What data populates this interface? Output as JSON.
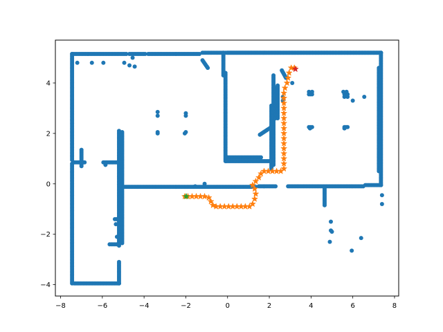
{
  "chart_data": {
    "type": "scatter",
    "title": "",
    "xlabel": "",
    "ylabel": "",
    "xlim": [
      -8.25,
      8.2
    ],
    "ylim": [
      -4.45,
      5.7
    ],
    "xticks": [
      -8,
      -6,
      -4,
      -2,
      0,
      2,
      4,
      6,
      8
    ],
    "yticks": [
      -4,
      -2,
      0,
      2,
      4
    ],
    "xtick_labels": [
      "−8",
      "−6",
      "−4",
      "−2",
      "0",
      "2",
      "4",
      "6",
      "8"
    ],
    "ytick_labels": [
      "−4",
      "−2",
      "0",
      "2",
      "4"
    ],
    "grid": false,
    "legend": "none",
    "series": [
      {
        "marker": "circle",
        "color": "#1f77b4",
        "segments": [
          [
            [
              -7.45,
              5.15
            ],
            [
              -4.85,
              5.15
            ]
          ],
          [
            [
              -4.7,
              5.15
            ],
            [
              -3.95,
              5.15
            ]
          ],
          [
            [
              -3.8,
              5.15
            ],
            [
              -1.35,
              5.15
            ]
          ],
          [
            [
              -1.2,
              5.2
            ],
            [
              7.35,
              5.2
            ]
          ],
          [
            [
              -7.45,
              5.15
            ],
            [
              -7.45,
              0.95
            ]
          ],
          [
            [
              -7.45,
              0.8
            ],
            [
              -7.45,
              -3.95
            ]
          ],
          [
            [
              -7.35,
              -3.95
            ],
            [
              -5.2,
              -3.95
            ]
          ],
          [
            [
              -5.2,
              -3.95
            ],
            [
              -5.2,
              -3.1
            ]
          ],
          [
            [
              -5.2,
              -2.45
            ],
            [
              -5.2,
              2.1
            ]
          ],
          [
            [
              -5.05,
              2.05
            ],
            [
              -5.05,
              -2.35
            ]
          ],
          [
            [
              -7.35,
              0.85
            ],
            [
              -6.85,
              0.85
            ]
          ],
          [
            [
              -7.0,
              1.35
            ],
            [
              -7.0,
              0.7
            ]
          ],
          [
            [
              -5.95,
              0.85
            ],
            [
              -5.3,
              0.85
            ]
          ],
          [
            [
              -5.4,
              -1.4
            ],
            [
              -5.25,
              -1.4
            ]
          ],
          [
            [
              -5.65,
              -2.4
            ],
            [
              -5.25,
              -2.4
            ]
          ],
          [
            [
              -5.05,
              -0.12
            ],
            [
              1.35,
              -0.12
            ]
          ],
          [
            [
              1.5,
              -0.1
            ],
            [
              2.3,
              -0.1
            ]
          ],
          [
            [
              2.9,
              -0.1
            ],
            [
              6.5,
              -0.1
            ]
          ],
          [
            [
              -0.2,
              5.2
            ],
            [
              -0.2,
              4.3
            ]
          ],
          [
            [
              -0.1,
              4.4
            ],
            [
              -0.1,
              0.9
            ]
          ],
          [
            [
              -0.05,
              1.05
            ],
            [
              1.6,
              1.05
            ]
          ],
          [
            [
              -0.05,
              0.9
            ],
            [
              2.2,
              0.9
            ]
          ],
          [
            [
              2.1,
              3.1
            ],
            [
              2.1,
              0.6
            ]
          ],
          [
            [
              2.2,
              4.3
            ],
            [
              2.2,
              0.75
            ]
          ],
          [
            [
              2.3,
              3.8
            ],
            [
              2.3,
              2.6
            ]
          ],
          [
            [
              2.4,
              3.9
            ],
            [
              2.4,
              2.6
            ]
          ],
          [
            [
              1.55,
              1.95
            ],
            [
              2.1,
              2.25
            ]
          ],
          [
            [
              2.6,
              4.5
            ],
            [
              2.8,
              4.2
            ]
          ],
          [
            [
              0.0,
              5.2
            ],
            [
              7.35,
              5.2
            ]
          ],
          [
            [
              7.35,
              5.2
            ],
            [
              7.35,
              -0.05
            ]
          ],
          [
            [
              7.25,
              4.6
            ],
            [
              7.25,
              0.5
            ]
          ],
          [
            [
              6.6,
              -0.05
            ],
            [
              7.35,
              -0.05
            ]
          ],
          [
            [
              5.6,
              3.55
            ],
            [
              5.75,
              3.55
            ]
          ],
          [
            [
              3.9,
              3.55
            ],
            [
              4.05,
              3.55
            ]
          ],
          [
            [
              3.9,
              2.25
            ],
            [
              4.05,
              2.25
            ]
          ],
          [
            [
              5.6,
              2.25
            ],
            [
              5.75,
              2.25
            ]
          ],
          [
            [
              -1.2,
              4.9
            ],
            [
              -0.95,
              4.6
            ]
          ],
          [
            [
              4.65,
              -0.15
            ],
            [
              4.65,
              -0.85
            ]
          ]
        ],
        "points": [
          [
            -7.2,
            4.8
          ],
          [
            -6.5,
            4.8
          ],
          [
            -5.95,
            4.8
          ],
          [
            -4.95,
            4.8
          ],
          [
            -4.7,
            4.7
          ],
          [
            -4.45,
            4.65
          ],
          [
            -4.55,
            5.0
          ],
          [
            -3.35,
            2.85
          ],
          [
            -3.35,
            2.7
          ],
          [
            -3.35,
            2.05
          ],
          [
            -3.35,
            2.0
          ],
          [
            -2.0,
            2.8
          ],
          [
            -2.0,
            2.7
          ],
          [
            -2.0,
            2.05
          ],
          [
            -2.05,
            2.0
          ],
          [
            3.9,
            3.65
          ],
          [
            4.05,
            3.65
          ],
          [
            5.55,
            3.65
          ],
          [
            5.7,
            3.65
          ],
          [
            3.95,
            2.2
          ],
          [
            5.6,
            2.2
          ],
          [
            4.95,
            -1.5
          ],
          [
            4.95,
            -1.85
          ],
          [
            5.0,
            -1.9
          ],
          [
            5.95,
            -2.65
          ],
          [
            6.4,
            -2.15
          ],
          [
            4.9,
            -2.3
          ],
          [
            7.4,
            -0.45
          ],
          [
            7.4,
            -0.8
          ],
          [
            -1.55,
            -0.1
          ],
          [
            -1.1,
            0.0
          ],
          [
            6.0,
            3.3
          ],
          [
            6.55,
            3.45
          ],
          [
            2.65,
            3.3
          ],
          [
            2.65,
            3.45
          ],
          [
            3.1,
            4.0
          ],
          [
            -5.85,
            0.75
          ],
          [
            -5.35,
            -1.6
          ],
          [
            -5.3,
            -2.1
          ],
          [
            5.6,
            3.45
          ],
          [
            5.75,
            3.45
          ]
        ]
      },
      {
        "marker": "star",
        "color": "#ff7f0e",
        "path": [
          [
            -2.05,
            -0.5
          ],
          [
            -1.9,
            -0.5
          ],
          [
            -1.7,
            -0.5
          ],
          [
            -1.5,
            -0.5
          ],
          [
            -1.3,
            -0.5
          ],
          [
            -1.1,
            -0.5
          ],
          [
            -0.9,
            -0.55
          ],
          [
            -0.8,
            -0.7
          ],
          [
            -0.7,
            -0.85
          ],
          [
            -0.55,
            -0.9
          ],
          [
            -0.35,
            -0.9
          ],
          [
            -0.15,
            -0.9
          ],
          [
            0.05,
            -0.9
          ],
          [
            0.25,
            -0.9
          ],
          [
            0.45,
            -0.9
          ],
          [
            0.65,
            -0.9
          ],
          [
            0.85,
            -0.9
          ],
          [
            1.05,
            -0.9
          ],
          [
            1.2,
            -0.8
          ],
          [
            1.3,
            -0.6
          ],
          [
            1.35,
            -0.4
          ],
          [
            1.3,
            -0.2
          ],
          [
            1.2,
            -0.05
          ],
          [
            1.35,
            0.1
          ],
          [
            1.5,
            0.25
          ],
          [
            1.6,
            0.4
          ],
          [
            1.75,
            0.5
          ],
          [
            1.95,
            0.5
          ],
          [
            2.15,
            0.5
          ],
          [
            2.35,
            0.5
          ],
          [
            2.55,
            0.5
          ],
          [
            2.7,
            0.6
          ],
          [
            2.7,
            0.8
          ],
          [
            2.7,
            1.0
          ],
          [
            2.7,
            1.2
          ],
          [
            2.7,
            1.4
          ],
          [
            2.7,
            1.6
          ],
          [
            2.7,
            1.8
          ],
          [
            2.7,
            2.0
          ],
          [
            2.7,
            2.2
          ],
          [
            2.7,
            2.4
          ],
          [
            2.7,
            2.6
          ],
          [
            2.7,
            2.8
          ],
          [
            2.7,
            3.0
          ],
          [
            2.7,
            3.2
          ],
          [
            2.7,
            3.4
          ],
          [
            2.7,
            3.6
          ],
          [
            2.75,
            3.8
          ],
          [
            2.85,
            4.0
          ],
          [
            2.9,
            4.2
          ],
          [
            2.95,
            4.4
          ],
          [
            3.05,
            4.6
          ],
          [
            3.2,
            4.6
          ]
        ]
      },
      {
        "marker": "star",
        "color": "#2ca02c",
        "points": [
          [
            -1.98,
            -0.5
          ]
        ]
      },
      {
        "marker": "star",
        "color": "#d62728",
        "points": [
          [
            3.25,
            4.55
          ]
        ]
      }
    ]
  }
}
